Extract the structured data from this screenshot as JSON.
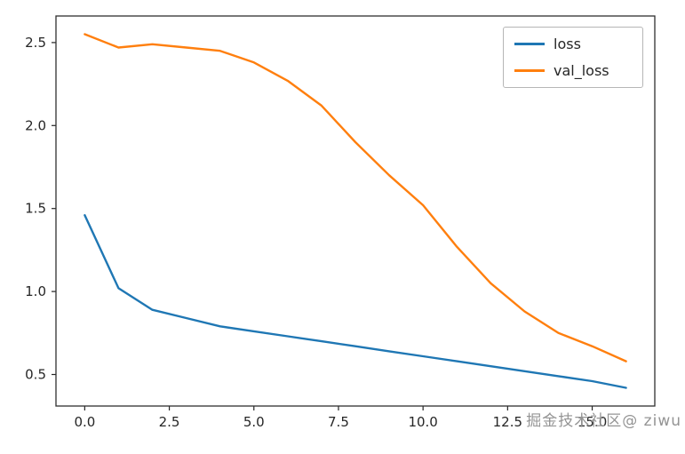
{
  "chart_data": {
    "type": "line",
    "title": "",
    "xlabel": "",
    "ylabel": "",
    "grid": false,
    "legend_position": "upper right",
    "x": [
      0,
      1,
      2,
      3,
      4,
      5,
      6,
      7,
      8,
      9,
      10,
      11,
      12,
      13,
      14,
      15,
      16
    ],
    "series": [
      {
        "name": "loss",
        "color": "#1f77b4",
        "values": [
          1.46,
          1.02,
          0.89,
          0.84,
          0.79,
          0.76,
          0.73,
          0.7,
          0.67,
          0.64,
          0.61,
          0.58,
          0.55,
          0.52,
          0.49,
          0.46,
          0.42
        ]
      },
      {
        "name": "val_loss",
        "color": "#ff7f0e",
        "values": [
          2.55,
          2.47,
          2.49,
          2.47,
          2.45,
          2.38,
          2.27,
          2.12,
          1.9,
          1.7,
          1.52,
          1.27,
          1.05,
          0.88,
          0.75,
          0.67,
          0.58
        ]
      }
    ],
    "xticks": [
      0,
      2.5,
      5,
      7.5,
      10,
      12.5,
      15
    ],
    "xtick_labels": [
      "0.0",
      "2.5",
      "5.0",
      "7.5",
      "10.0",
      "12.5",
      "15.0"
    ],
    "yticks": [
      0.5,
      1.0,
      1.5,
      2.0,
      2.5
    ],
    "ytick_labels": [
      "0.5",
      "1.0",
      "1.5",
      "2.0",
      "2.5"
    ],
    "xlim": [
      -0.85,
      16.85
    ],
    "ylim": [
      0.31,
      2.66
    ],
    "spine_color": "#2f2f2f",
    "tick_color": "#262626"
  },
  "watermark": {
    "text": "掘金技术社区@ ziwu",
    "color": "#949494"
  }
}
